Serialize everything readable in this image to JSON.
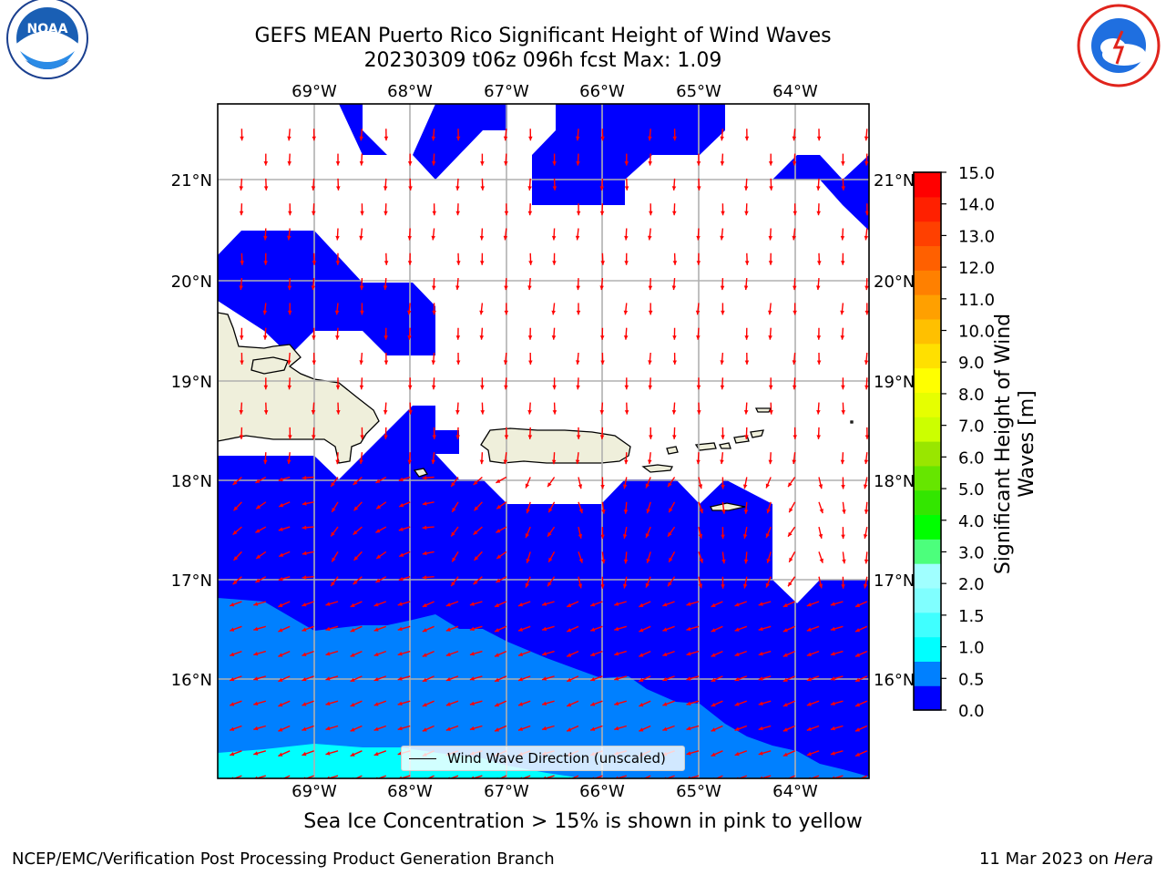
{
  "title_line1": "GEFS MEAN Puerto Rico Significant Height of Wind Waves",
  "title_line2": "20230309 t06z 096h fcst   Max: 1.09",
  "logos": {
    "left": "NOAA",
    "right": "NATIONAL WEATHER SERVICE"
  },
  "map": {
    "lon_ticks": [
      "69°W",
      "68°W",
      "67°W",
      "66°W",
      "65°W",
      "64°W"
    ],
    "lat_ticks": [
      "21°N",
      "20°N",
      "19°N",
      "18°N",
      "17°N",
      "16°N"
    ],
    "land_color": "#efefdb",
    "gridline_color": "#b0b0b0",
    "vector_color": "#ff0000",
    "legend_label": "Wind Wave Direction (unscaled)"
  },
  "colorbar": {
    "label": "Significant Height of Wind Waves [m]",
    "ticks": [
      "15.0",
      "14.0",
      "13.0",
      "12.0",
      "11.0",
      "10.0",
      "9.0",
      "8.0",
      "7.0",
      "6.0",
      "5.0",
      "4.0",
      "3.0",
      "2.0",
      "1.5",
      "1.0",
      "0.5",
      "0.0"
    ],
    "colors_bottom_to_top": [
      "#0000ff",
      "#0080ff",
      "#00ffff",
      "#40ffff",
      "#80ffff",
      "#a0ffff",
      "#4cff7c",
      "#00ff00",
      "#33e600",
      "#66e600",
      "#99e600",
      "#ccff00",
      "#e6ff00",
      "#ffff00",
      "#ffe000",
      "#ffc000",
      "#ffa000",
      "#ff8000",
      "#ff6000",
      "#ff4000",
      "#ff2000",
      "#ff0000"
    ]
  },
  "caption_ice": "Sea Ice Concentration > 15% is shown in pink to yellow",
  "footer_left": "NCEP/EMC/Verification Post Processing Product Generation Branch",
  "footer_date": "11 Mar 2023 on",
  "footer_machine": "Hera"
}
